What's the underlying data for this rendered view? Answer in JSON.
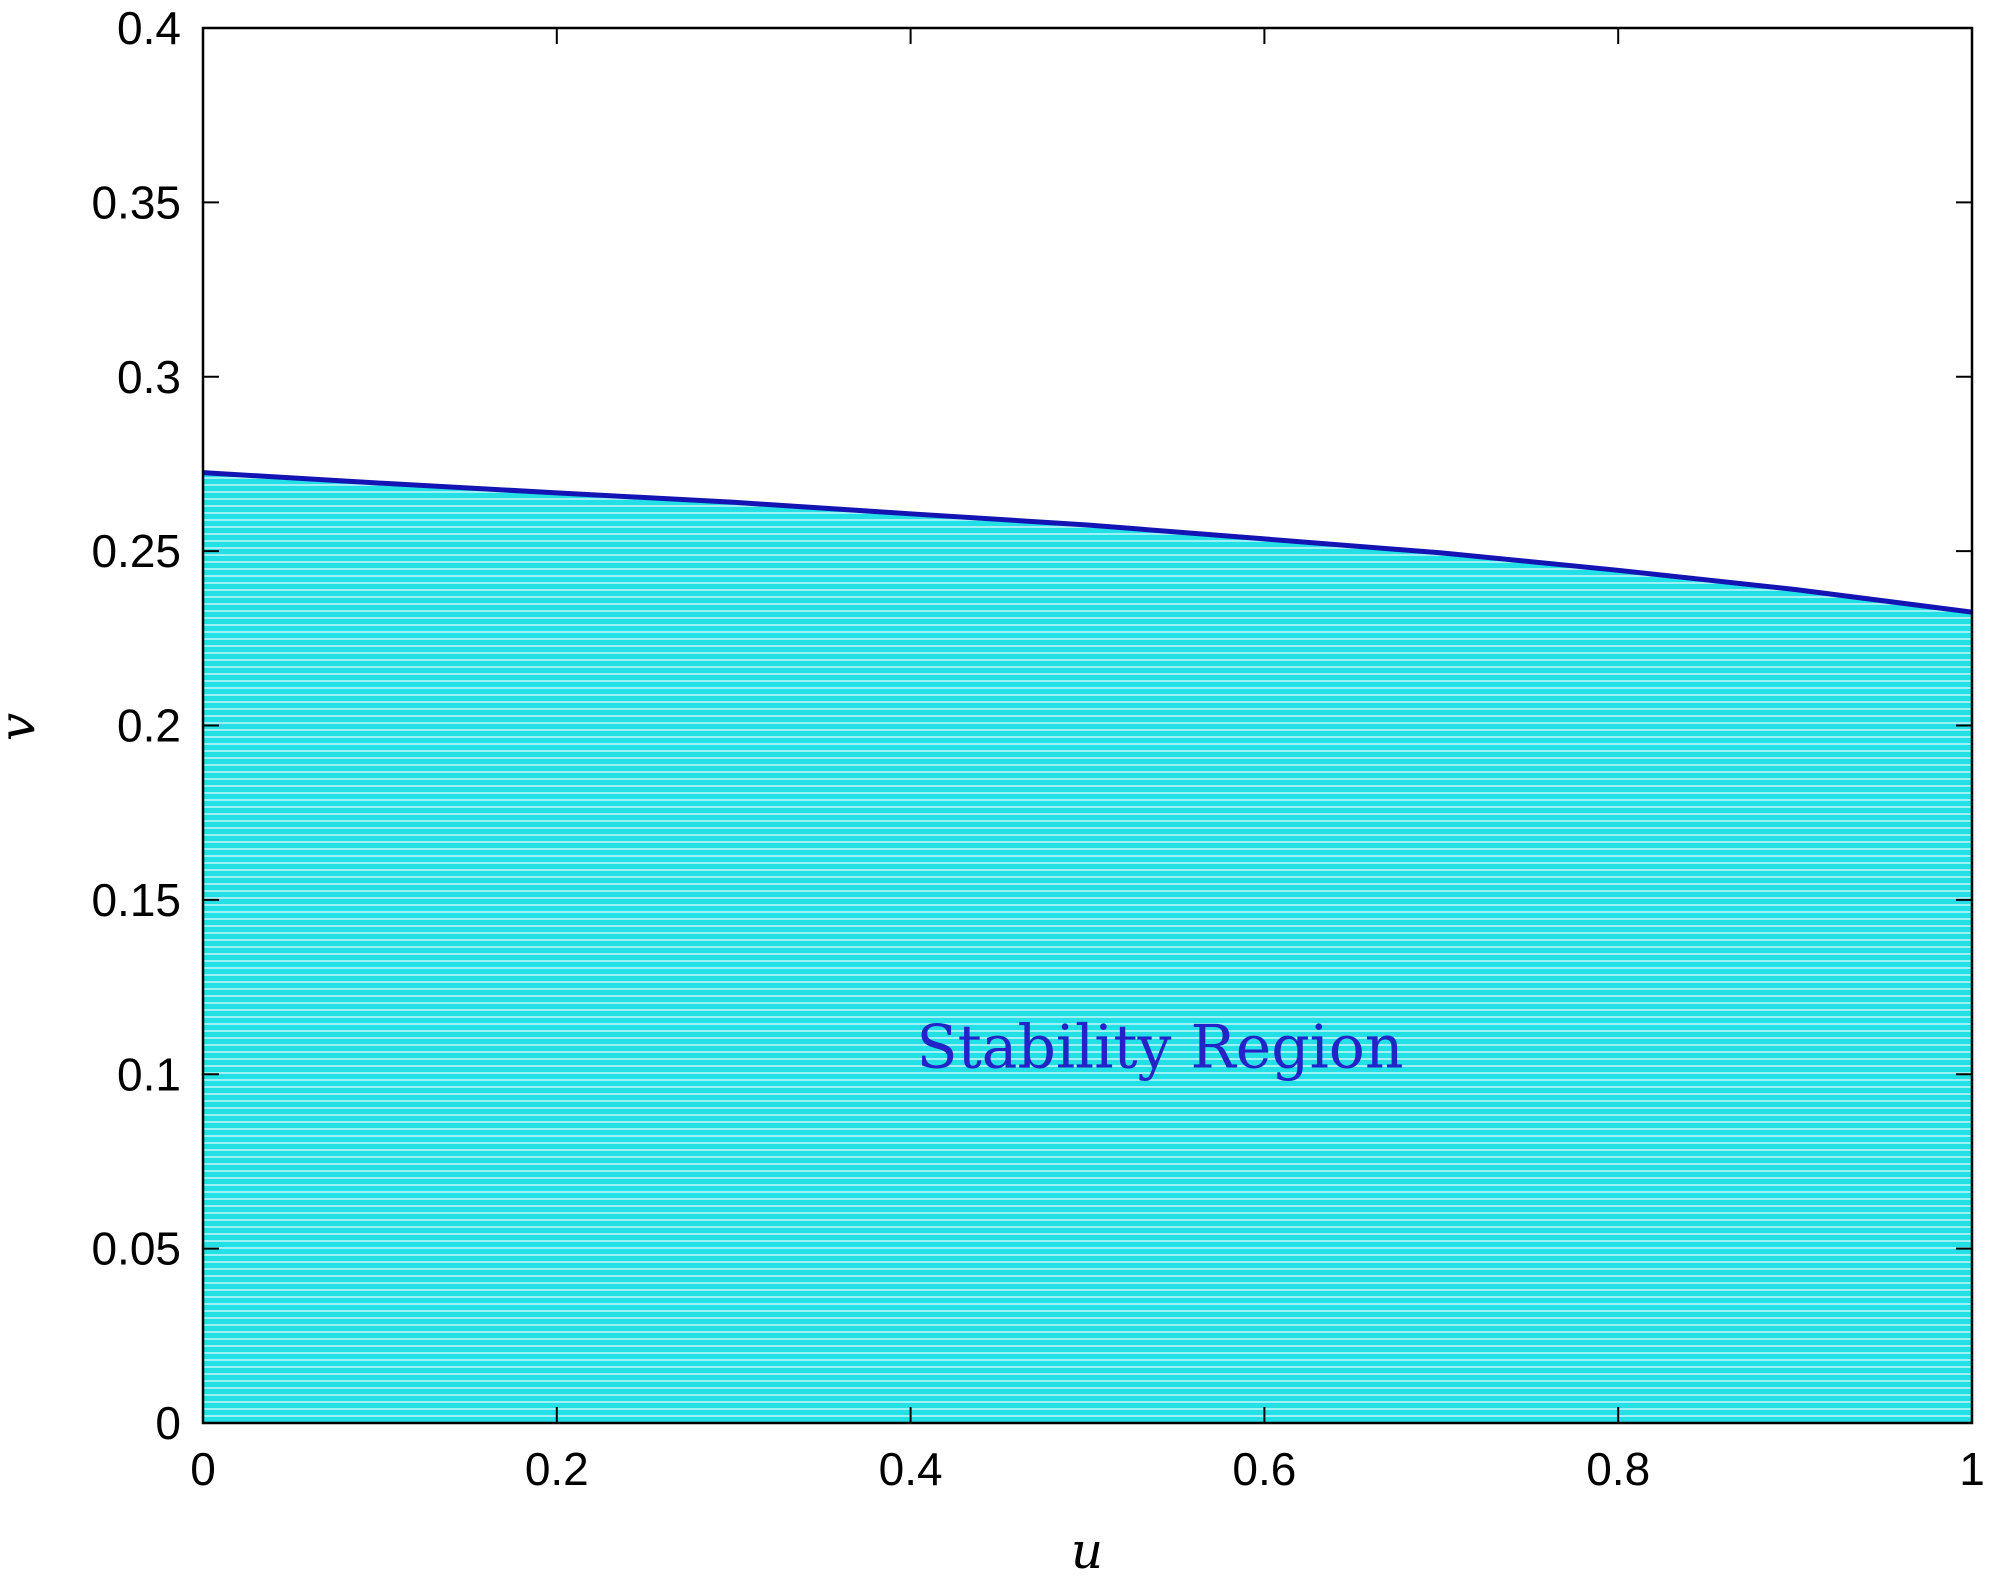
{
  "chart_data": {
    "type": "area",
    "title": "",
    "xlabel": "u",
    "ylabel": "v",
    "xlim": [
      0,
      1
    ],
    "ylim": [
      0,
      0.4
    ],
    "x_ticks": [
      "0",
      "0.2",
      "0.4",
      "0.6",
      "0.8",
      "1"
    ],
    "y_ticks": [
      "0",
      "0.05",
      "0.1",
      "0.15",
      "0.2",
      "0.25",
      "0.3",
      "0.35",
      "0.4"
    ],
    "grid": false,
    "boundary": {
      "x": [
        0,
        0.1,
        0.2,
        0.3,
        0.4,
        0.5,
        0.6,
        0.7,
        0.8,
        0.9,
        1.0
      ],
      "y": [
        0.2725,
        0.2695,
        0.2667,
        0.264,
        0.2607,
        0.2575,
        0.2535,
        0.2495,
        0.2445,
        0.239,
        0.2325
      ]
    },
    "fill": {
      "from": 0,
      "to": "boundary",
      "pattern": "horizontal-lines"
    },
    "annotations": [
      {
        "text": "Stability Region",
        "x": 0.541,
        "y": 0.102
      }
    ],
    "colors": {
      "fill": "#22e0e6",
      "fill_stripes": "#c8f6f8",
      "boundary_line": "#1414b4",
      "annotation": "#2323c8",
      "axes": "#000000"
    }
  }
}
